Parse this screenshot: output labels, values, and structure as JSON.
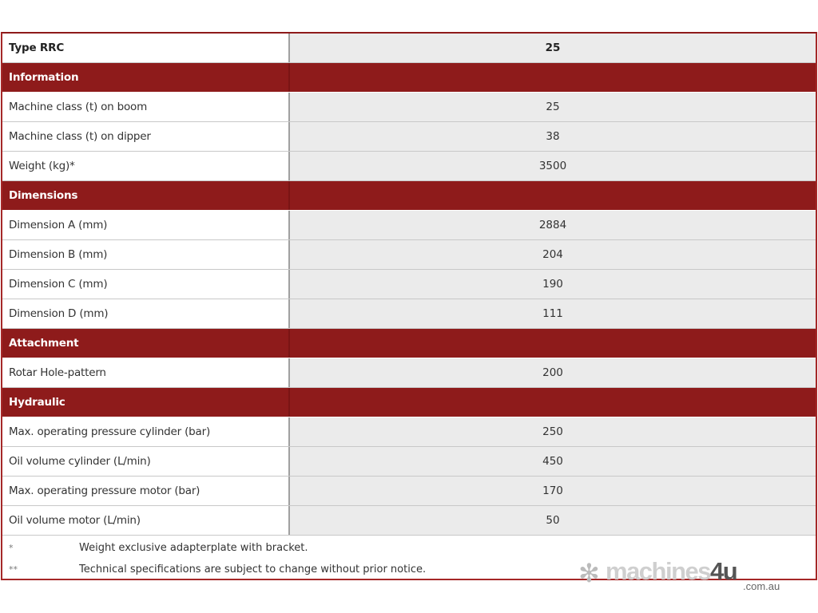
{
  "table": {
    "rows": [
      {
        "kind": "type",
        "label": "Type RRC",
        "value": "25"
      },
      {
        "kind": "section",
        "label": "Information",
        "value": ""
      },
      {
        "kind": "data",
        "label": "Machine class (t) on boom",
        "value": "25"
      },
      {
        "kind": "data",
        "label": "Machine class (t) on dipper",
        "value": "38"
      },
      {
        "kind": "data",
        "label": "Weight (kg)*",
        "value": "3500"
      },
      {
        "kind": "section",
        "label": "Dimensions",
        "value": ""
      },
      {
        "kind": "data",
        "label": "Dimension A (mm)",
        "value": "2884"
      },
      {
        "kind": "data",
        "label": "Dimension B (mm)",
        "value": "204"
      },
      {
        "kind": "data",
        "label": "Dimension C (mm)",
        "value": "190"
      },
      {
        "kind": "data",
        "label": "Dimension D (mm)",
        "value": "111"
      },
      {
        "kind": "section",
        "label": "Attachment",
        "value": ""
      },
      {
        "kind": "data",
        "label": "Rotar Hole-pattern",
        "value": "200"
      },
      {
        "kind": "section",
        "label": "Hydraulic",
        "value": ""
      },
      {
        "kind": "data",
        "label": "Max. operating pressure cylinder (bar)",
        "value": "250"
      },
      {
        "kind": "data",
        "label": "Oil volume cylinder (L/min)",
        "value": "450"
      },
      {
        "kind": "data",
        "label": "Max. operating pressure motor (bar)",
        "value": "170"
      },
      {
        "kind": "data",
        "label": "Oil volume motor (L/min)",
        "value": "50"
      }
    ]
  },
  "notes": [
    {
      "mark": "*",
      "text": "Weight exclusive adapterplate with bracket."
    },
    {
      "mark": "**",
      "text": "Technical specifications are subject to change without prior notice."
    }
  ],
  "watermark": {
    "brand": "machines",
    "four": "4u",
    "tld": ".com.au",
    "icon": "snowflake-icon"
  },
  "colors": {
    "section": "#8e1b1b",
    "value_bg": "#ebebeb",
    "border": "#a52828"
  }
}
